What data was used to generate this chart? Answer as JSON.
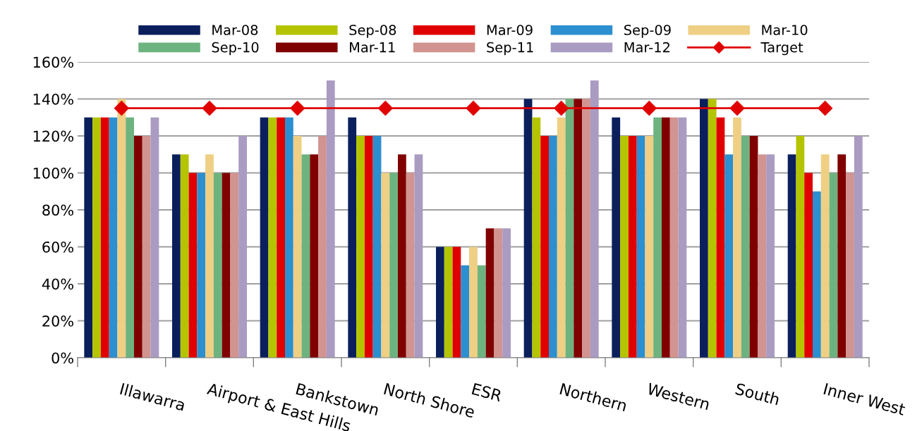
{
  "chart_data": {
    "type": "bar",
    "categories": [
      "Illawarra",
      "Airport & East Hills",
      "Bankstown",
      "North Shore",
      "ESR",
      "Northern",
      "Western",
      "South",
      "Inner West"
    ],
    "series": [
      {
        "name": "Mar-08",
        "color": "#0a1f5c",
        "values": [
          130,
          110,
          130,
          130,
          60,
          140,
          130,
          140,
          110
        ]
      },
      {
        "name": "Sep-08",
        "color": "#b5c400",
        "values": [
          130,
          110,
          130,
          120,
          60,
          130,
          120,
          140,
          120
        ]
      },
      {
        "name": "Mar-09",
        "color": "#e00000",
        "values": [
          130,
          100,
          130,
          120,
          60,
          120,
          120,
          130,
          100
        ]
      },
      {
        "name": "Sep-09",
        "color": "#2b8fd0",
        "values": [
          130,
          100,
          130,
          120,
          50,
          120,
          120,
          110,
          90
        ]
      },
      {
        "name": "Mar-10",
        "color": "#eecf84",
        "values": [
          140,
          110,
          120,
          100,
          60,
          130,
          120,
          130,
          110
        ]
      },
      {
        "name": "Sep-10",
        "color": "#6db37f",
        "values": [
          130,
          100,
          110,
          100,
          50,
          140,
          130,
          120,
          100
        ]
      },
      {
        "name": "Mar-11",
        "color": "#800000",
        "values": [
          120,
          100,
          110,
          110,
          70,
          140,
          130,
          120,
          110
        ]
      },
      {
        "name": "Sep-11",
        "color": "#d29490",
        "values": [
          120,
          100,
          120,
          100,
          70,
          140,
          130,
          110,
          100
        ]
      },
      {
        "name": "Mar-12",
        "color": "#a99bc1",
        "values": [
          130,
          120,
          150,
          110,
          70,
          150,
          130,
          110,
          120
        ]
      },
      {
        "name": "Target",
        "type": "line",
        "color": "#e00000",
        "marker": "diamond",
        "values": [
          135,
          135,
          135,
          135,
          135,
          135,
          135,
          135,
          135
        ]
      }
    ],
    "ylim": [
      0,
      160
    ],
    "yticks": [
      {
        "value": 0,
        "label": "0%"
      },
      {
        "value": 20,
        "label": "20%"
      },
      {
        "value": 40,
        "label": "40%"
      },
      {
        "value": 60,
        "label": "60%"
      },
      {
        "value": 80,
        "label": "80%"
      },
      {
        "value": 100,
        "label": "100%"
      },
      {
        "value": 120,
        "label": "120%"
      },
      {
        "value": 140,
        "label": "140%"
      },
      {
        "value": 160,
        "label": "160%"
      }
    ],
    "grid": "y",
    "legend": "top"
  }
}
